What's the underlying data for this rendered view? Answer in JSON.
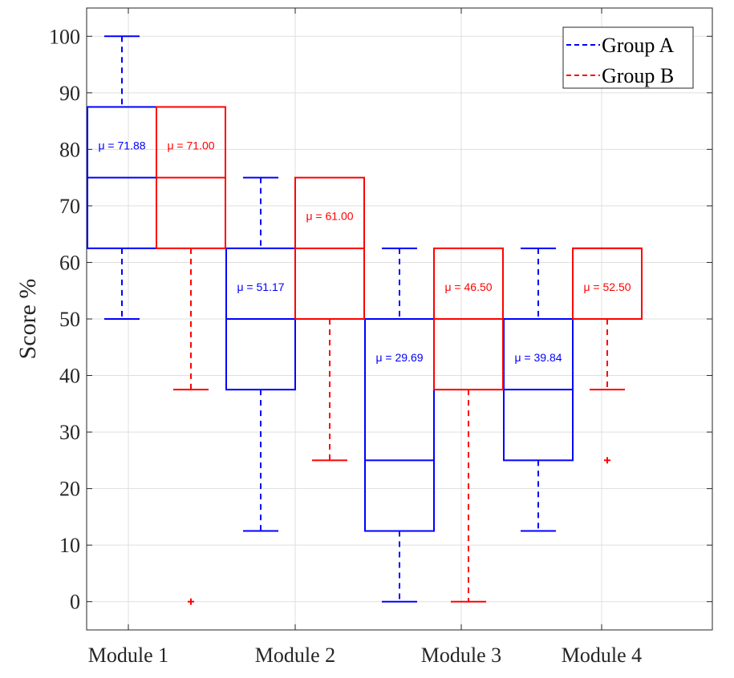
{
  "chart_data": {
    "type": "box",
    "ylabel": "Score %",
    "ylim": [
      -5,
      105
    ],
    "yticks": [
      0,
      10,
      20,
      30,
      40,
      50,
      60,
      70,
      80,
      90,
      100
    ],
    "categories": [
      "Module 1",
      "Module 2",
      "Module 3",
      "Module 4"
    ],
    "grid": true,
    "legend_position": "top-right",
    "series": [
      {
        "name": "Group A",
        "color": "#0000ff",
        "boxes": [
          {
            "category": "Module 1",
            "whisker_low": 50,
            "q1": 62.5,
            "median": 75,
            "q3": 87.5,
            "whisker_high": 100,
            "mean_label": "μ = 71.88",
            "outliers": []
          },
          {
            "category": "Module 2",
            "whisker_low": 12.5,
            "q1": 37.5,
            "median": 50,
            "q3": 62.5,
            "whisker_high": 75,
            "mean_label": "μ = 51.17",
            "outliers": []
          },
          {
            "category": "Module 3",
            "whisker_low": 0,
            "q1": 12.5,
            "median": 25,
            "q3": 50,
            "whisker_high": 62.5,
            "mean_label": "μ = 29.69",
            "outliers": []
          },
          {
            "category": "Module 4",
            "whisker_low": 12.5,
            "q1": 25,
            "median": 37.5,
            "q3": 50,
            "whisker_high": 62.5,
            "mean_label": "μ = 39.84",
            "outliers": []
          }
        ]
      },
      {
        "name": "Group B",
        "color": "#ff0000",
        "boxes": [
          {
            "category": "Module 1",
            "whisker_low": 37.5,
            "q1": 62.5,
            "median": 75,
            "q3": 87.5,
            "whisker_high": 87.5,
            "mean_label": "μ = 71.00",
            "outliers": [
              0
            ]
          },
          {
            "category": "Module 2",
            "whisker_low": 25,
            "q1": 50,
            "median": 62.5,
            "q3": 75,
            "whisker_high": 75,
            "mean_label": "μ = 61.00",
            "outliers": []
          },
          {
            "category": "Module 3",
            "whisker_low": 0,
            "q1": 37.5,
            "median": 50,
            "q3": 62.5,
            "whisker_high": 62.5,
            "mean_label": "μ = 46.50",
            "outliers": []
          },
          {
            "category": "Module 4",
            "whisker_low": 37.5,
            "q1": 50,
            "median": 62.5,
            "q3": 62.5,
            "whisker_high": 62.5,
            "mean_label": "μ = 52.50",
            "outliers": [
              25
            ]
          }
        ]
      }
    ]
  }
}
